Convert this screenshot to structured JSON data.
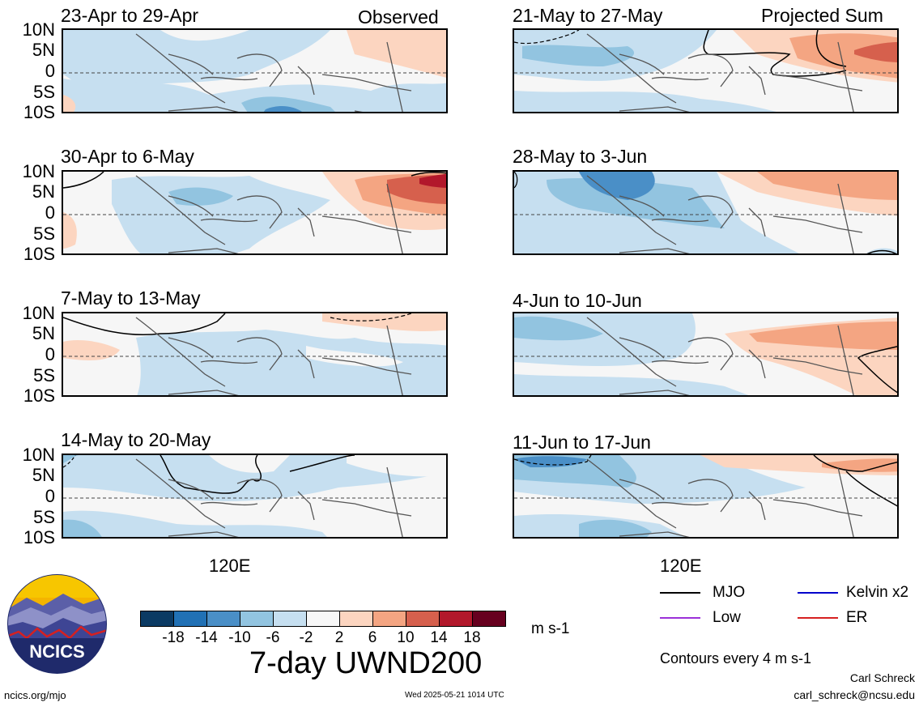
{
  "panels": {
    "left": [
      {
        "title": "23-Apr to 29-Apr",
        "tag": "Observed"
      },
      {
        "title": "30-Apr to 6-May",
        "tag": ""
      },
      {
        "title": "7-May to 13-May",
        "tag": ""
      },
      {
        "title": "14-May to 20-May",
        "tag": ""
      }
    ],
    "right": [
      {
        "title": "21-May to 27-May",
        "tag": "Projected Sum"
      },
      {
        "title": "28-May to 3-Jun",
        "tag": ""
      },
      {
        "title": "4-Jun to 10-Jun",
        "tag": ""
      },
      {
        "title": "11-Jun to 17-Jun",
        "tag": ""
      }
    ]
  },
  "axes": {
    "lat_ticks": [
      "10N",
      "5N",
      "0",
      "5S",
      "10S"
    ],
    "lon_tick": "120E"
  },
  "colorbar": {
    "labels": [
      "-18",
      "-14",
      "-10",
      "-6",
      "-2",
      "2",
      "6",
      "10",
      "14",
      "18"
    ],
    "colors": [
      "#0b3a63",
      "#2171b5",
      "#4a8fc7",
      "#92c4e0",
      "#c6dff0",
      "#f7f7f7",
      "#fcd5c0",
      "#f4a582",
      "#d6604d",
      "#b2182b",
      "#67001f"
    ],
    "units": "m s-1",
    "title": "7-day UWND200"
  },
  "legend": [
    {
      "label": "MJO",
      "color": "#000000"
    },
    {
      "label": "Kelvin x2",
      "color": "#0000cc"
    },
    {
      "label": "Low",
      "color": "#9b30d9"
    },
    {
      "label": "ER",
      "color": "#d62020"
    }
  ],
  "contour_note": "Contours every 4 m s-1",
  "logo_text": "NCICS",
  "footer": {
    "url": "ncics.org/mjo",
    "timestamp": "Wed 2025-05-21 1014 UTC",
    "author": "Carl Schreck",
    "email": "carl_schreck@ncsu.edu"
  }
}
